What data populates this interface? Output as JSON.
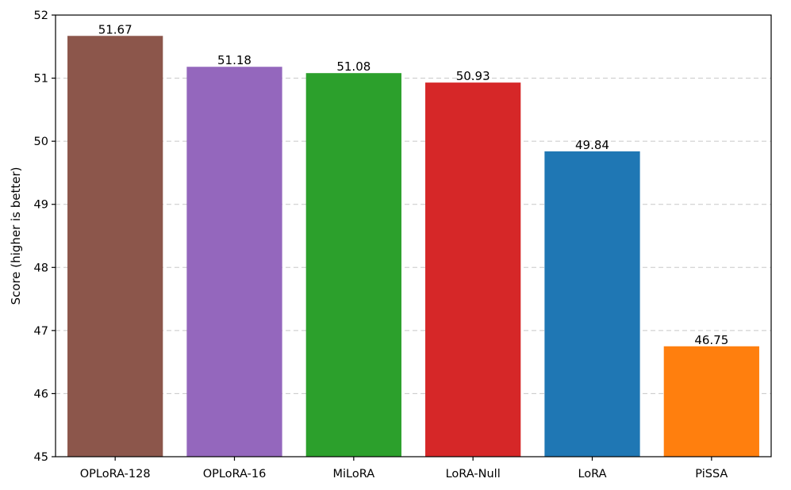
{
  "chart_data": {
    "type": "bar",
    "title": "",
    "xlabel": "",
    "ylabel": "Score (higher is better)",
    "ylim": [
      45,
      52
    ],
    "yticks": [
      45,
      46,
      47,
      48,
      49,
      50,
      51,
      52
    ],
    "grid": true,
    "categories": [
      "OPLoRA-128",
      "OPLoRA-16",
      "MiLoRA",
      "LoRA-Null",
      "LoRA",
      "PiSSA"
    ],
    "values": [
      51.67,
      51.18,
      51.08,
      50.93,
      49.84,
      46.75
    ],
    "value_labels": [
      "51.67",
      "51.18",
      "51.08",
      "50.93",
      "49.84",
      "46.75"
    ],
    "colors": [
      "#8c564b",
      "#9467bd",
      "#2ca02c",
      "#d62728",
      "#1f77b4",
      "#ff7f0e"
    ]
  }
}
